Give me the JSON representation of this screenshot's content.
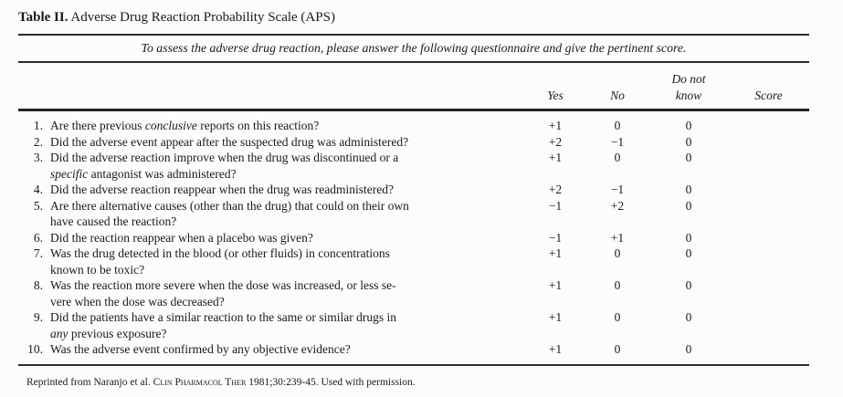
{
  "title": {
    "bold": "Table II.",
    "text": " Adverse Drug Reaction Probability Scale (APS)"
  },
  "instruction": "To assess the adverse drug reaction, please answer the following questionnaire and give the pertinent score.",
  "columns": {
    "yes": "Yes",
    "no": "No",
    "dnk_line1": "Do not",
    "dnk_line2": "know",
    "score": "Score"
  },
  "rows": [
    {
      "num": "1.",
      "lines": [
        [
          {
            "t": "Are there previous "
          },
          {
            "t": "conclusive",
            "i": true
          },
          {
            "t": " reports on this reaction?"
          }
        ]
      ],
      "yes": "+1",
      "no": "0",
      "dnk": "0",
      "score": ""
    },
    {
      "num": "2.",
      "lines": [
        [
          {
            "t": "Did the adverse event appear after the suspected drug was administered?"
          }
        ]
      ],
      "yes": "+2",
      "no": "−1",
      "dnk": "0",
      "score": ""
    },
    {
      "num": "3.",
      "lines": [
        [
          {
            "t": "Did the adverse reaction improve when the drug was discontinued or a"
          }
        ],
        [
          {
            "t": "specific",
            "i": true
          },
          {
            "t": " antagonist was administered?"
          }
        ]
      ],
      "yes": "+1",
      "no": "0",
      "dnk": "0",
      "score": ""
    },
    {
      "num": "4.",
      "lines": [
        [
          {
            "t": "Did the adverse reaction reappear when the drug was readministered?"
          }
        ]
      ],
      "yes": "+2",
      "no": "−1",
      "dnk": "0",
      "score": ""
    },
    {
      "num": "5.",
      "lines": [
        [
          {
            "t": "Are there alternative causes (other than the drug) that could on their own"
          }
        ],
        [
          {
            "t": "have caused the reaction?"
          }
        ]
      ],
      "yes": "−1",
      "no": "+2",
      "dnk": "0",
      "score": ""
    },
    {
      "num": "6.",
      "lines": [
        [
          {
            "t": "Did the reaction reappear when a placebo was given?"
          }
        ]
      ],
      "yes": "−1",
      "no": "+1",
      "dnk": "0",
      "score": ""
    },
    {
      "num": "7.",
      "lines": [
        [
          {
            "t": "Was the drug detected in the blood (or other fluids) in concentrations"
          }
        ],
        [
          {
            "t": "known to be toxic?"
          }
        ]
      ],
      "yes": "+1",
      "no": "0",
      "dnk": "0",
      "score": ""
    },
    {
      "num": "8.",
      "lines": [
        [
          {
            "t": "Was the reaction more severe when the dose was increased, or less se-"
          }
        ],
        [
          {
            "t": "vere when the dose was decreased?"
          }
        ]
      ],
      "yes": "+1",
      "no": "0",
      "dnk": "0",
      "score": ""
    },
    {
      "num": "9.",
      "lines": [
        [
          {
            "t": "Did the patients have a similar reaction to the same or similar drugs in"
          }
        ],
        [
          {
            "t": "any",
            "i": true
          },
          {
            "t": " previous exposure?"
          }
        ]
      ],
      "yes": "+1",
      "no": "0",
      "dnk": "0",
      "score": ""
    },
    {
      "num": "10.",
      "lines": [
        [
          {
            "t": "Was the adverse event confirmed by any objective evidence?"
          }
        ]
      ],
      "yes": "+1",
      "no": "0",
      "dnk": "0",
      "score": ""
    }
  ],
  "footer": {
    "pre": "Reprinted from Naranjo et al. ",
    "smallcaps": "Clin Pharmacol Ther",
    "post": " 1981;30:239-45. Used with permission."
  }
}
